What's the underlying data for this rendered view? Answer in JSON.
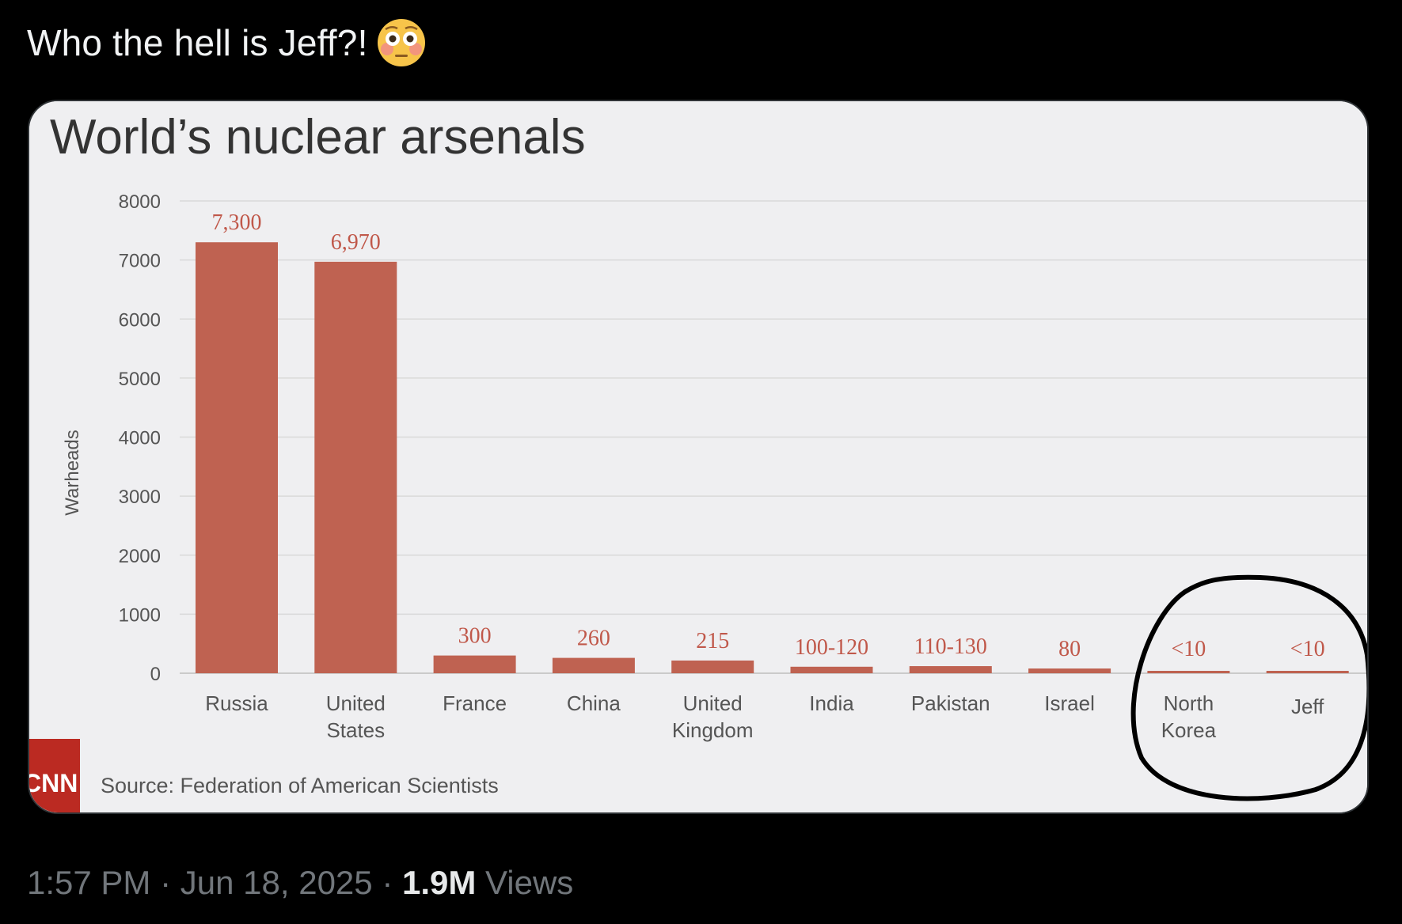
{
  "tweet": {
    "text": "Who the hell is Jeff?!",
    "emoji": "flushed-face-emoji",
    "time": "1:57 PM",
    "sep1": "·",
    "date": "Jun 18, 2025",
    "sep2": "·",
    "views_count": "1.9M",
    "views_label": "Views"
  },
  "colors": {
    "bar": "#bf6251",
    "label": "#c0584a",
    "page_bg": "#000000",
    "card_bg": "#efeff1",
    "cnn_red": "#bb2a22"
  },
  "chart_data": {
    "type": "bar",
    "title": "World’s nuclear arsenals",
    "ylabel": "Warheads",
    "ylim": [
      0,
      8000
    ],
    "yticks": [
      0,
      1000,
      2000,
      3000,
      4000,
      5000,
      6000,
      7000,
      8000
    ],
    "grid": true,
    "categories": [
      [
        "Russia"
      ],
      [
        "United",
        "States"
      ],
      [
        "France"
      ],
      [
        "China"
      ],
      [
        "United",
        "Kingdom"
      ],
      [
        "India"
      ],
      [
        "Pakistan"
      ],
      [
        "Israel"
      ],
      [
        "North",
        "Korea"
      ],
      [
        "Jeff"
      ]
    ],
    "values": [
      7300,
      6970,
      300,
      260,
      215,
      110,
      120,
      80,
      5,
      5
    ],
    "value_labels": [
      "7,300",
      "6,970",
      "300",
      "260",
      "215",
      "100-120",
      "110-130",
      "80",
      "<10",
      "<10"
    ],
    "source": "Source: Federation of American Scientists",
    "logo": "CNN",
    "annotation": "hand-drawn-circle-around-jeff"
  }
}
